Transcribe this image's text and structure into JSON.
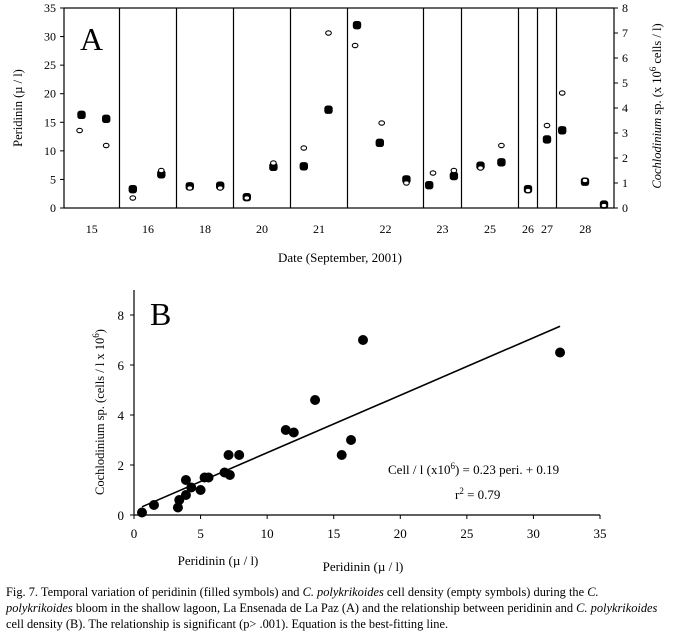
{
  "chart_data": [
    {
      "panel_label": "A",
      "type": "scatter",
      "title": "",
      "xlabel": "Date (September, 2001)",
      "ylabel_left": "Peridinin (µ / l)",
      "ylabel_right_prefix": "Cochlodinium",
      "ylabel_right_suffix": " sp. (x 10",
      "ylabel_right_exp": "6",
      "ylabel_right_end": " cells / l)",
      "ylim_left": [
        0,
        35
      ],
      "ylim_right": [
        0,
        8
      ],
      "yticks_left": [
        "0",
        "5",
        "10",
        "15",
        "20",
        "25",
        "30",
        "35"
      ],
      "yticks_right": [
        "0",
        "1",
        "2",
        "3",
        "4",
        "5",
        "6",
        "7",
        "8"
      ],
      "day_labels": [
        "15",
        "16",
        "18",
        "20",
        "21",
        "22",
        "23",
        "25",
        "26",
        "27",
        "28"
      ],
      "sample_index_range": [
        0,
        28
      ],
      "day_separators_after_index": [
        2.5,
        5.5,
        8.5,
        11.5,
        14.5,
        18.5,
        20.5,
        23.5,
        24.5,
        25.5
      ],
      "series": [
        {
          "marker": "filled",
          "axis": "left",
          "points": [
            [
              0.5,
              16.3
            ],
            [
              1.8,
              15.6
            ],
            [
              3.2,
              3.3
            ],
            [
              4.7,
              5.9
            ],
            [
              6.2,
              3.8
            ],
            [
              7.8,
              3.9
            ],
            [
              9.2,
              1.9
            ],
            [
              10.6,
              7.2
            ],
            [
              12.2,
              7.3
            ],
            [
              13.5,
              17.2
            ],
            [
              15.0,
              32.0
            ],
            [
              16.2,
              11.4
            ],
            [
              17.6,
              5.0
            ],
            [
              18.8,
              4.0
            ],
            [
              20.1,
              5.6
            ],
            [
              21.5,
              7.4
            ],
            [
              22.6,
              8.0
            ],
            [
              24.0,
              3.3
            ],
            [
              25.0,
              12.0
            ],
            [
              25.8,
              13.6
            ],
            [
              27.0,
              4.6
            ],
            [
              28.0,
              0.6
            ]
          ]
        },
        {
          "marker": "open",
          "axis": "right",
          "points": [
            [
              0.4,
              3.1
            ],
            [
              1.8,
              2.5
            ],
            [
              3.2,
              0.4
            ],
            [
              4.7,
              1.5
            ],
            [
              6.2,
              0.8
            ],
            [
              7.8,
              0.8
            ],
            [
              9.2,
              0.4
            ],
            [
              10.6,
              1.8
            ],
            [
              12.2,
              2.4
            ],
            [
              13.5,
              7.0
            ],
            [
              14.9,
              6.5
            ],
            [
              16.3,
              3.4
            ],
            [
              17.6,
              1.0
            ],
            [
              19.0,
              1.4
            ],
            [
              20.1,
              1.5
            ],
            [
              21.5,
              1.6
            ],
            [
              22.6,
              2.5
            ],
            [
              24.0,
              0.7
            ],
            [
              25.0,
              3.3
            ],
            [
              25.8,
              4.6
            ],
            [
              27.0,
              1.1
            ],
            [
              28.0,
              0.1
            ]
          ]
        }
      ]
    },
    {
      "panel_label": "B",
      "type": "scatter",
      "title": "",
      "xlabel": "Peridinin (µ / l)",
      "xlabel_dup": "Peridinin (µ / l)",
      "ylabel_main": "Cochlodinium sp. (cells / l x 10",
      "ylabel_exp": "6",
      "ylabel_end": ")",
      "xlim": [
        0,
        35
      ],
      "ylim": [
        0,
        9
      ],
      "xticks": [
        "0",
        "5",
        "10",
        "15",
        "20",
        "25",
        "30",
        "35"
      ],
      "yticks": [
        "0",
        "2",
        "4",
        "6",
        "8"
      ],
      "equation_prefix": "Cell / l (x10",
      "equation_exp": "6",
      "equation_suffix": ") = 0.23 peri. + 0.19",
      "r2_base": "r",
      "r2_exp": "2",
      "r2_value": " = 0.79",
      "fit_line": {
        "slope": 0.23,
        "intercept": 0.19,
        "x_range": [
          0.6,
          32.0
        ]
      },
      "points": [
        [
          0.6,
          0.1
        ],
        [
          1.5,
          0.4
        ],
        [
          3.3,
          0.3
        ],
        [
          3.4,
          0.6
        ],
        [
          3.9,
          0.8
        ],
        [
          3.9,
          1.4
        ],
        [
          4.3,
          1.1
        ],
        [
          5.0,
          1.0
        ],
        [
          5.6,
          1.5
        ],
        [
          5.3,
          1.5
        ],
        [
          6.8,
          1.7
        ],
        [
          7.1,
          2.4
        ],
        [
          7.2,
          1.6
        ],
        [
          7.9,
          2.4
        ],
        [
          11.4,
          3.4
        ],
        [
          12.0,
          3.3
        ],
        [
          13.6,
          4.6
        ],
        [
          15.6,
          2.4
        ],
        [
          16.3,
          3.0
        ],
        [
          17.2,
          7.0
        ],
        [
          32.0,
          6.5
        ]
      ]
    }
  ],
  "caption": {
    "part1": "Fig. 7. Temporal variation of peridinin (filled symbols) and ",
    "italic1": "C. polykrikoides",
    "part2": " cell density (empty symbols) during the ",
    "italic2": "C. polykrikoides",
    "part3": " bloom in the shallow lagoon, La Ensenada de La Paz (A) and the relationship between peridinin and ",
    "italic3": "C. polykrikoides",
    "part4": " cell density (B). The relationship is significant (p> .001). Equation is the best-fitting line."
  }
}
